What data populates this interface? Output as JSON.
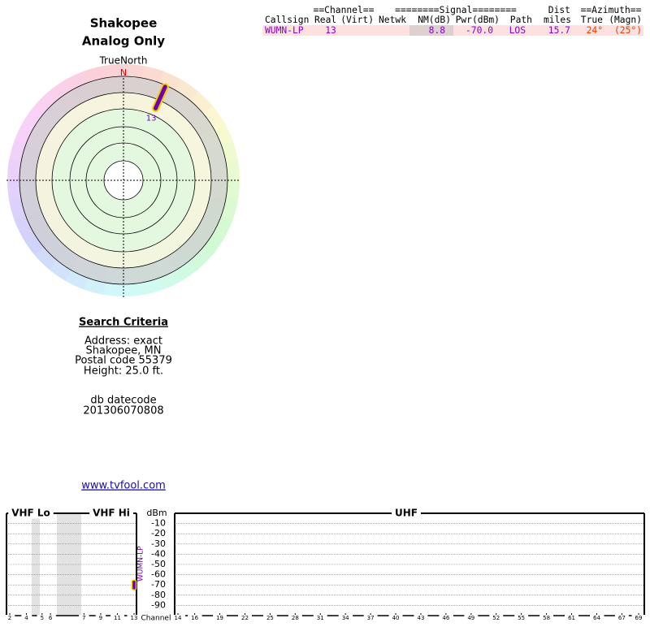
{
  "header": {
    "title": "Shakopee",
    "subtitle": "Analog Only"
  },
  "table": {
    "group_headers": [
      "==Channel==",
      "========Signal========",
      "Dist",
      "==Azimuth=="
    ],
    "columns": [
      "Callsign",
      "Real",
      "(Virt)",
      "Netwk",
      "NM(dB)",
      "Pwr(dBm)",
      "Path",
      "miles",
      "True",
      "(Magn)"
    ],
    "rows": [
      {
        "callsign": "WUMN-LP",
        "real": "13",
        "nm": "8.8",
        "pwr": "-70.0",
        "path": "LOS",
        "miles": "15.7",
        "true": "24°",
        "magn": "(25°)"
      }
    ]
  },
  "search": {
    "title": "Search Criteria",
    "lines": [
      "Address: exact",
      "Shakopee, MN",
      "Postal code 55379",
      "Height: 25.0 ft."
    ],
    "datecode_label": "db datecode",
    "datecode": "201306070808",
    "link": "www.tvfool.com"
  },
  "chart_data": [
    {
      "type": "polar",
      "title": "TrueNorth",
      "north_label": "N",
      "labels": [
        "13"
      ],
      "azimuth": [
        24
      ],
      "color": "#7000b0"
    },
    {
      "type": "spectrum",
      "sections": [
        "VHF Lo",
        "VHF Hi",
        "UHF"
      ],
      "y_label": "dBm",
      "x_label": "Channel",
      "ylim": [
        0,
        -100
      ],
      "yticks": [
        -10,
        -20,
        -30,
        -40,
        -50,
        -60,
        -70,
        -80,
        -90
      ],
      "vhf_xlim": [
        2,
        13
      ],
      "vhf_xticks": [
        2,
        4,
        5,
        6,
        7,
        9,
        11,
        13
      ],
      "uhf_xlim": [
        14,
        69
      ],
      "uhf_xticks": [
        14,
        16,
        19,
        22,
        25,
        28,
        31,
        34,
        37,
        40,
        43,
        46,
        49,
        52,
        55,
        58,
        61,
        64,
        67,
        69
      ],
      "series": [
        {
          "name": "WUMN-LP",
          "color": "#7000b0",
          "x": [
            13
          ],
          "values": [
            -70
          ]
        }
      ]
    }
  ]
}
